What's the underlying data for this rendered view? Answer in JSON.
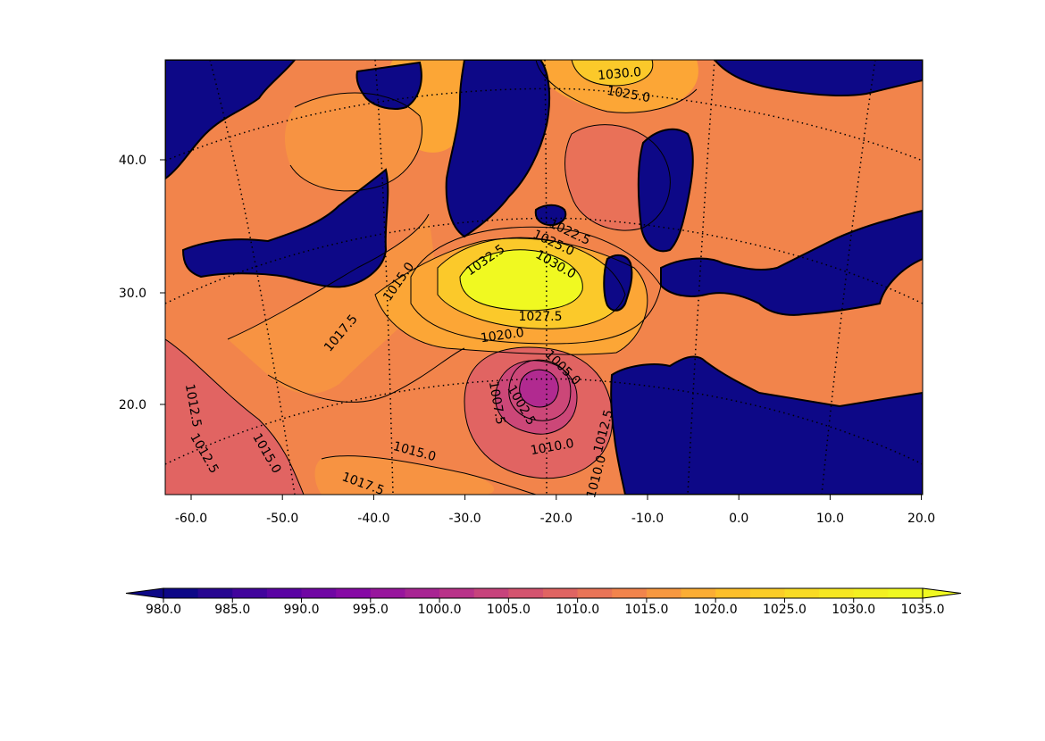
{
  "chart_data": {
    "type": "filled-contour-map",
    "title": "",
    "xlabel": "",
    "ylabel": "",
    "x_ticks": [
      "-60.0",
      "-50.0",
      "-40.0",
      "-30.0",
      "-20.0",
      "-10.0",
      "0.0",
      "10.0",
      "20.0"
    ],
    "y_ticks": [
      "20.0",
      "30.0",
      "40.0"
    ],
    "grid": "dotted graticule",
    "colormap": "plasma",
    "land_fill": "#0d0887",
    "colorbar": {
      "placement": "bottom",
      "extend": "both",
      "levels": [
        980,
        982.5,
        985,
        987.5,
        990,
        992.5,
        995,
        997.5,
        1000,
        1002.5,
        1005,
        1007.5,
        1010,
        1012.5,
        1015,
        1017.5,
        1020,
        1022.5,
        1025,
        1027.5,
        1030,
        1032.5,
        1035
      ],
      "tick_labels": [
        "980.0",
        "985.0",
        "990.0",
        "995.0",
        "1000.0",
        "1005.0",
        "1010.0",
        "1015.0",
        "1020.0",
        "1025.0",
        "1030.0",
        "1035.0"
      ]
    },
    "contour_labels": [
      "1030.0",
      "1025.0",
      "1032.5",
      "1030.0",
      "1025.0",
      "1022.5",
      "1027.5",
      "1020.0",
      "1015.0",
      "1017.5",
      "1012.5",
      "1012.5",
      "1015.0",
      "1017.5",
      "1015.0",
      "1010.0",
      "1005.0",
      "1007.5",
      "1002.5",
      "1012.5",
      "1010.0"
    ]
  }
}
